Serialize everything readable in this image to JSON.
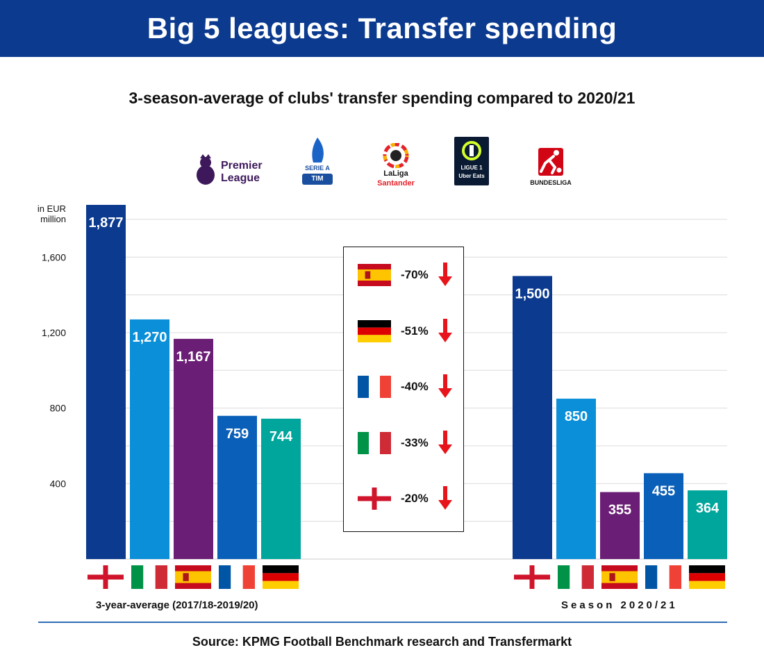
{
  "header": {
    "title": "Big 5 leagues: Transfer spending"
  },
  "subtitle": "3-season-average of clubs' transfer spending compared to 2020/21",
  "logos": [
    {
      "name": "premier-league",
      "line1": "Premier",
      "line2": "League",
      "color": "#3d195b"
    },
    {
      "name": "serie-a",
      "line1": "SERIE A",
      "line2": "TIM",
      "color": "#1a4fa0"
    },
    {
      "name": "laliga",
      "line1": "LaLiga",
      "line2": "Santander",
      "color": "#e4232b"
    },
    {
      "name": "ligue-1",
      "line1": "LIGUE 1",
      "line2": "Uber Eats",
      "color": "#0a1a33"
    },
    {
      "name": "bundesliga",
      "line1": "BUNDESLIGA",
      "line2": "",
      "color": "#d20515"
    }
  ],
  "unit_label": [
    "in EUR",
    "million"
  ],
  "source": "Source: KPMG Football Benchmark research and Transfermarkt",
  "chart_data": {
    "type": "bar",
    "title": "3-season-average of clubs' transfer spending compared to 2020/21",
    "ylabel": "in EUR million",
    "yticks": [
      "400",
      "800",
      "1,200",
      "1,600"
    ],
    "ylim": [
      0,
      1877
    ],
    "grid": true,
    "series_colors": [
      "#0b3a8f",
      "#0a8fd8",
      "#6b1e75",
      "#0a5fb8",
      "#00a59b"
    ],
    "categories": [
      "England",
      "Italy",
      "Spain",
      "France",
      "Germany"
    ],
    "groups": [
      {
        "label": "3-year-average (2017/18-2019/20)",
        "values": [
          1877,
          1270,
          1167,
          759,
          744
        ],
        "labels": [
          "1,877",
          "1,270",
          "1,167",
          "759",
          "744"
        ]
      },
      {
        "label": "Season 2020/21",
        "values": [
          1500,
          850,
          355,
          455,
          364
        ],
        "labels": [
          "1,500",
          "850",
          "355",
          "455",
          "364"
        ]
      }
    ],
    "changes": [
      {
        "country": "Spain",
        "value": "-70%"
      },
      {
        "country": "Germany",
        "value": "-51%"
      },
      {
        "country": "France",
        "value": "-40%"
      },
      {
        "country": "Italy",
        "value": "-33%"
      },
      {
        "country": "England",
        "value": "-20%"
      }
    ]
  }
}
